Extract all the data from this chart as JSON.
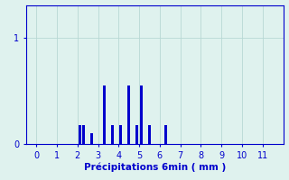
{
  "xlabel": "Précipitations 6min ( mm )",
  "bar_color": "#0000cc",
  "background_color": "#dff2ee",
  "grid_color": "#b8d8d4",
  "text_color": "#0000cc",
  "axis_color": "#0000cc",
  "xlim": [
    -0.5,
    12.0
  ],
  "ylim": [
    0,
    1.3
  ],
  "yticks": [
    0,
    1
  ],
  "xticks": [
    0,
    1,
    2,
    3,
    4,
    5,
    6,
    7,
    8,
    9,
    10,
    11
  ],
  "bar_positions": [
    2.1,
    2.3,
    2.7,
    3.3,
    3.7,
    4.1,
    4.5,
    4.9,
    5.1,
    5.5,
    6.3
  ],
  "bar_heights": [
    0.18,
    0.18,
    0.1,
    0.55,
    0.18,
    0.18,
    0.55,
    0.18,
    0.55,
    0.18,
    0.18
  ],
  "bar_width": 0.13,
  "tick_labelsize": 7,
  "xlabel_fontsize": 7.5
}
